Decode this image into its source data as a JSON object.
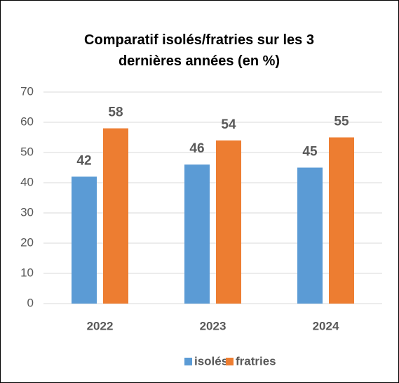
{
  "chart_data": {
    "type": "bar",
    "title": "Comparatif isolés/fratries sur les 3 dernières années (en %)",
    "categories": [
      "2022",
      "2023",
      "2024"
    ],
    "series": [
      {
        "name": "isolés",
        "color": "#5b9bd5",
        "values": [
          42,
          46,
          45
        ]
      },
      {
        "name": "fratries",
        "color": "#ed7d31",
        "values": [
          58,
          54,
          55
        ]
      }
    ],
    "ylim": [
      0,
      70
    ],
    "yticks": [
      0,
      10,
      20,
      30,
      40,
      50,
      60,
      70
    ],
    "grid": true,
    "legend": "bottom"
  }
}
